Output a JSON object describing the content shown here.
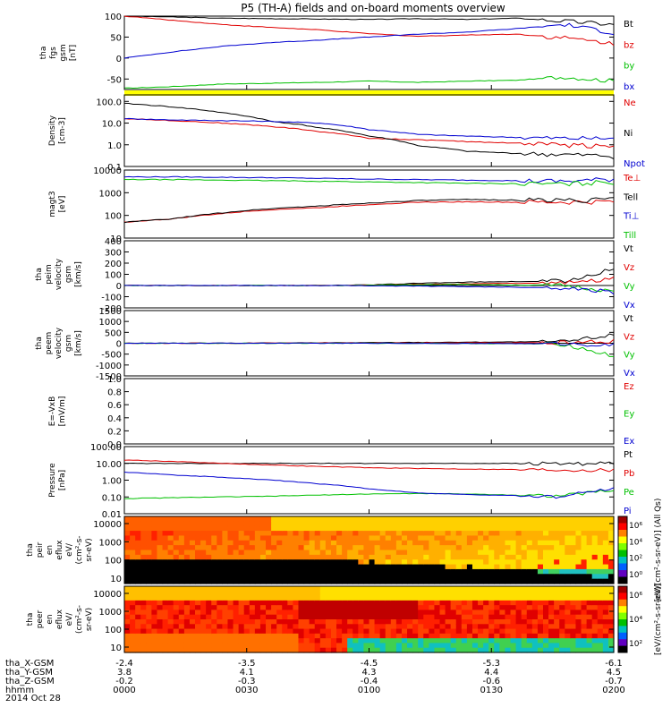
{
  "title": "P5 (TH-A) fields and on-board moments overview",
  "date_label": "2014 Oct 28",
  "time_axis": {
    "row_labels": [
      "tha_X-GSM",
      "tha_Y-GSM",
      "tha_Z-GSM",
      "hhmm"
    ],
    "ticks": [
      {
        "x": "-2.4",
        "y": "3.8",
        "z": "-0.2",
        "t": "0000"
      },
      {
        "x": "-3.5",
        "y": "4.1",
        "z": "-0.3",
        "t": "0030"
      },
      {
        "x": "-4.5",
        "y": "4.3",
        "z": "-0.4",
        "t": "0100"
      },
      {
        "x": "-5.3",
        "y": "4.4",
        "z": "-0.6",
        "t": "0130"
      },
      {
        "x": "-6.1",
        "y": "4.5",
        "z": "-0.7",
        "t": "0200"
      }
    ]
  },
  "colors": {
    "black": "#000000",
    "red": "#e00000",
    "green": "#00c000",
    "blue": "#0000d0",
    "yellow": "#ffff00"
  },
  "chart_data": [
    {
      "type": "line",
      "ylabel": [
        "tha",
        "fgs",
        "gsm",
        "[nT]"
      ],
      "ylim": [
        -75,
        100
      ],
      "yticks": [
        "-50",
        "0",
        "50",
        "100"
      ],
      "series": [
        {
          "name": "Bt",
          "color": "black",
          "values": [
            100,
            98,
            95,
            94,
            93,
            92,
            94,
            92,
            95,
            88,
            80
          ]
        },
        {
          "name": "bz",
          "color": "red",
          "values": [
            100,
            90,
            80,
            73,
            67,
            58,
            52,
            55,
            57,
            48,
            35
          ]
        },
        {
          "name": "by",
          "color": "green",
          "values": [
            -72,
            -68,
            -62,
            -60,
            -58,
            -55,
            -58,
            -55,
            -53,
            -45,
            -55
          ]
        },
        {
          "name": "bx",
          "color": "blue",
          "values": [
            0,
            15,
            28,
            37,
            43,
            50,
            57,
            62,
            70,
            80,
            60
          ]
        }
      ]
    },
    {
      "type": "line",
      "ylabel": [
        "Density",
        "[cm-3]"
      ],
      "log": true,
      "ylim": [
        0.1,
        200
      ],
      "yticks": [
        "0.1",
        "1.0",
        "10.0",
        "100.0"
      ],
      "series": [
        {
          "name": "Ne",
          "color": "red",
          "values": [
            16,
            13,
            10,
            7,
            4,
            2,
            1.7,
            1.4,
            1.2,
            1.0,
            0.9
          ]
        },
        {
          "name": "Ni",
          "color": "black",
          "values": [
            80,
            55,
            30,
            12,
            6,
            2.5,
            0.9,
            0.5,
            0.4,
            0.35,
            0.3
          ]
        },
        {
          "name": "Npot",
          "color": "blue",
          "values": [
            16,
            14,
            13,
            12,
            10,
            5,
            3,
            2.5,
            2.2,
            2,
            2
          ]
        }
      ]
    },
    {
      "type": "line",
      "ylabel": [
        "magt3",
        "[eV]"
      ],
      "log": true,
      "ylim": [
        10,
        10000
      ],
      "yticks": [
        "10",
        "100",
        "1000",
        "10000"
      ],
      "series": [
        {
          "name": "Te⊥",
          "color": "red",
          "values": [
            50,
            70,
            120,
            180,
            220,
            300,
            380,
            400,
            380,
            380,
            400
          ]
        },
        {
          "name": "Tell",
          "color": "black",
          "values": [
            50,
            70,
            130,
            200,
            260,
            350,
            450,
            500,
            480,
            480,
            500
          ]
        },
        {
          "name": "Ti⊥",
          "color": "blue",
          "values": [
            5000,
            5000,
            4800,
            4600,
            4300,
            4000,
            3800,
            3600,
            3400,
            3200,
            4000
          ]
        },
        {
          "name": "Till",
          "color": "green",
          "values": [
            3800,
            3800,
            3600,
            3400,
            3200,
            3000,
            2800,
            2600,
            2500,
            2400,
            3000
          ]
        }
      ]
    },
    {
      "type": "line",
      "ylabel": [
        "tha",
        "peim",
        "velocity",
        "gsm",
        "[km/s]"
      ],
      "ylim": [
        -200,
        400
      ],
      "yticks": [
        "-200",
        "-100",
        "0",
        "100",
        "200",
        "300",
        "400"
      ],
      "series": [
        {
          "name": "Vt",
          "color": "black",
          "values": [
            0,
            0,
            0,
            0,
            0,
            5,
            20,
            30,
            35,
            40,
            150
          ]
        },
        {
          "name": "Vz",
          "color": "red",
          "values": [
            0,
            0,
            0,
            0,
            0,
            3,
            10,
            15,
            20,
            25,
            60
          ]
        },
        {
          "name": "Vy",
          "color": "green",
          "values": [
            0,
            0,
            0,
            0,
            0,
            2,
            8,
            10,
            5,
            0,
            -50
          ]
        },
        {
          "name": "Vx",
          "color": "blue",
          "values": [
            0,
            0,
            0,
            0,
            0,
            -2,
            -5,
            -10,
            -15,
            -20,
            -60
          ]
        }
      ]
    },
    {
      "type": "line",
      "ylabel": [
        "tha",
        "peem",
        "velocity",
        "gsm",
        "[km/s]"
      ],
      "ylim": [
        -1500,
        1500
      ],
      "yticks": [
        "-1500",
        "-1000",
        "-500",
        "0",
        "500",
        "1000",
        "1500"
      ],
      "series": [
        {
          "name": "Vt",
          "color": "black",
          "values": [
            0,
            0,
            0,
            10,
            20,
            30,
            40,
            50,
            60,
            80,
            400
          ]
        },
        {
          "name": "Vz",
          "color": "red",
          "values": [
            0,
            0,
            0,
            5,
            10,
            10,
            15,
            20,
            20,
            30,
            100
          ]
        },
        {
          "name": "Vy",
          "color": "green",
          "values": [
            0,
            0,
            0,
            0,
            0,
            0,
            0,
            -10,
            -20,
            -50,
            -600
          ]
        },
        {
          "name": "Vx",
          "color": "blue",
          "values": [
            0,
            0,
            0,
            0,
            0,
            0,
            -5,
            -10,
            -15,
            -20,
            -100
          ]
        }
      ]
    },
    {
      "type": "line",
      "ylabel": [
        "E=-VxB",
        "[mV/m]"
      ],
      "ylim": [
        0,
        1
      ],
      "yticks": [
        "0.0",
        "0.2",
        "0.4",
        "0.6",
        "0.8",
        "1.0"
      ],
      "series": [
        {
          "name": "Ez",
          "color": "red",
          "values": []
        },
        {
          "name": "Ey",
          "color": "green",
          "values": []
        },
        {
          "name": "Ex",
          "color": "blue",
          "values": []
        }
      ]
    },
    {
      "type": "line",
      "ylabel": [
        "Pressure",
        "[nPa]"
      ],
      "log": true,
      "ylim": [
        0.01,
        100
      ],
      "yticks": [
        "0.01",
        "0.10",
        "1.00",
        "10.00",
        "100.00"
      ],
      "series": [
        {
          "name": "Pt",
          "color": "black",
          "values": [
            10,
            10,
            10,
            10,
            10,
            10,
            10,
            10,
            10,
            10,
            10
          ]
        },
        {
          "name": "Pb",
          "color": "red",
          "values": [
            16,
            13,
            10,
            8,
            6.5,
            5.5,
            5,
            4.6,
            4.3,
            4.1,
            4
          ]
        },
        {
          "name": "Pe",
          "color": "green",
          "values": [
            0.08,
            0.09,
            0.1,
            0.11,
            0.13,
            0.15,
            0.16,
            0.15,
            0.13,
            0.12,
            0.25
          ]
        },
        {
          "name": "Pi",
          "color": "blue",
          "values": [
            3,
            2,
            1.5,
            1.0,
            0.6,
            0.3,
            0.17,
            0.14,
            0.12,
            0.1,
            0.3
          ]
        }
      ]
    },
    {
      "type": "heatmap",
      "ylabel": [
        "tha",
        "peir",
        "en",
        "eflux",
        "eV/",
        "(cm^2-s-",
        "sr-eV)"
      ],
      "yticks": [
        "10",
        "100",
        "1000",
        "10000"
      ],
      "colorbar_label": "[eV/(cm^2-s-sr-eV)] (All Qs)"
    },
    {
      "type": "heatmap",
      "ylabel": [
        "tha",
        "peer",
        "en",
        "eflux",
        "eV/",
        "(cm^2-s-",
        "sr-eV)"
      ],
      "yticks": [
        "10",
        "100",
        "1000",
        "10000"
      ],
      "colorbar_label": "[eV/(cm^2-s-sr-eV)]"
    }
  ],
  "colorbars": [
    {
      "ticks": [
        "10^6",
        "10^4",
        "10^2",
        "10^0"
      ]
    },
    {
      "ticks": [
        "10^6",
        "10^4",
        "10^2"
      ]
    }
  ]
}
